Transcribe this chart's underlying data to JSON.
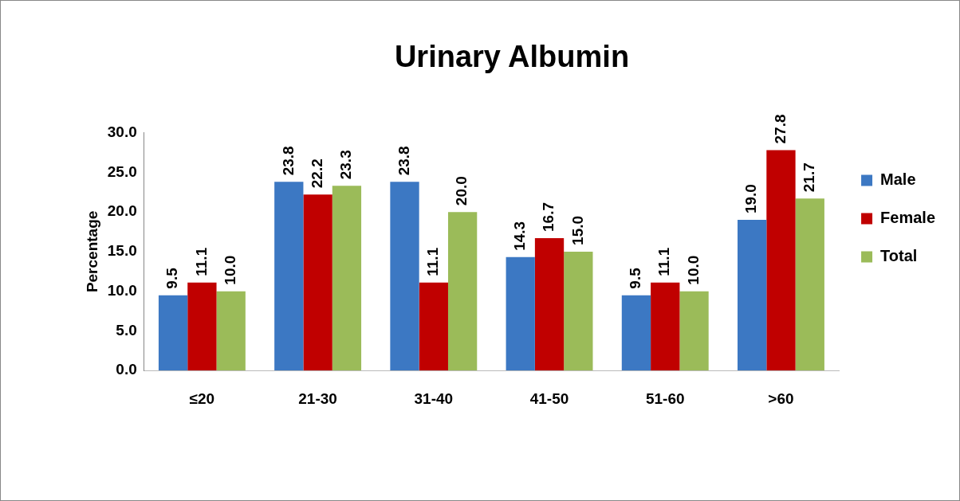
{
  "chart_data": {
    "type": "bar",
    "title": "Urinary Albumin",
    "ylabel": "Percentage",
    "categories": [
      "≤20",
      "21-30",
      "31-40",
      "41-50",
      "51-60",
      ">60"
    ],
    "series": [
      {
        "name": "Male",
        "color": "#3c78c3",
        "values": [
          9.5,
          23.8,
          23.8,
          14.3,
          9.5,
          19.0
        ],
        "value_labels": [
          "9.5",
          "23.8",
          "23.8",
          "14.3",
          "9.5",
          "19.0"
        ]
      },
      {
        "name": "Female",
        "color": "#c00000",
        "values": [
          11.1,
          22.2,
          11.1,
          16.7,
          11.1,
          27.8
        ],
        "value_labels": [
          "11.1",
          "22.2",
          "11.1",
          "16.7",
          "11.1",
          "27.8"
        ]
      },
      {
        "name": "Total",
        "color": "#9bbb59",
        "values": [
          10.0,
          23.3,
          20.0,
          15.0,
          10.0,
          21.7
        ],
        "value_labels": [
          "10.0",
          "23.3",
          "20.0",
          "15.0",
          "10.0",
          "21.7"
        ]
      }
    ],
    "ylim": [
      0,
      30
    ],
    "yticks": [
      {
        "value": 0,
        "label": "0.0"
      },
      {
        "value": 5,
        "label": "5.0"
      },
      {
        "value": 10,
        "label": "10.0"
      },
      {
        "value": 15,
        "label": "15.0"
      },
      {
        "value": 20,
        "label": "20.0"
      },
      {
        "value": 25,
        "label": "25.0"
      },
      {
        "value": 30,
        "label": "30.0"
      }
    ],
    "grid": false,
    "legend": "right"
  }
}
